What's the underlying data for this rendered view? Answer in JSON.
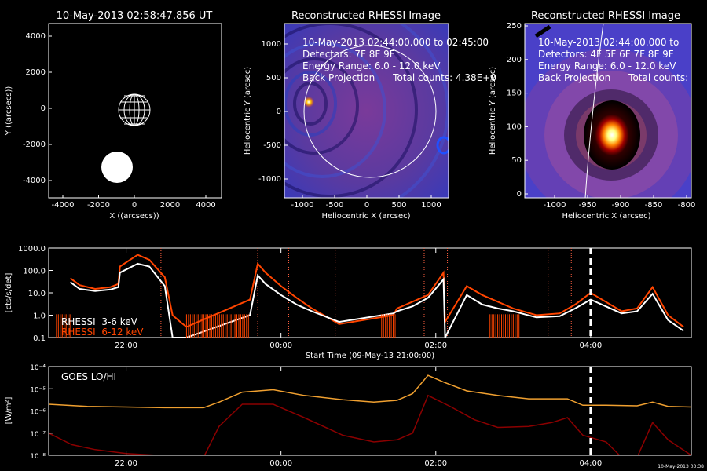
{
  "panels": {
    "overview": {
      "title": "10-May-2013 02:58:47.856 UT",
      "xlabel": "X ((arcsecs))",
      "ylabel": "Y ((arcsecs))",
      "xticks": [
        "-4000",
        "-2000",
        "0",
        "2000",
        "4000"
      ],
      "yticks": [
        "4000",
        "2000",
        "0",
        "-2000",
        "-4000"
      ]
    },
    "image1": {
      "title": "Reconstructed RHESSI Image",
      "lines": [
        "10-May-2013 02:44:00.000 to 02:45:00",
        "Detectors: 7F 8F 9F",
        "Energy Range: 6.0 - 12.0 keV",
        "Back Projection      Total counts: 4.38E+0"
      ],
      "xlabel": "Heliocentric X (arcsec)",
      "ylabel": "Heliocentric Y (arcsec)",
      "xticks": [
        "-1000",
        "-500",
        "0",
        "500",
        "1000"
      ],
      "yticks": [
        "1000",
        "500",
        "0",
        "-500",
        "-1000"
      ]
    },
    "image2": {
      "title": "Reconstructed RHESSI Image",
      "lines": [
        "10-May-2013 02:44:00.000 to",
        "Detectors: 4F 5F 6F 7F 8F 9F",
        "Energy Range: 6.0 - 12.0 keV",
        "Back Projection      Total counts:"
      ],
      "xlabel": "Heliocentric X (arcsec)",
      "ylabel": "Heliocentric Y (arcsec)",
      "xticks": [
        "-1000",
        "-950",
        "-900",
        "-850",
        "-800"
      ],
      "yticks": [
        "250",
        "200",
        "150",
        "100",
        "50",
        "0"
      ]
    },
    "rhessi": {
      "ylabel": "[cts/s/det]",
      "yticks": [
        "1000.0",
        "100.0",
        "10.0",
        "1.0",
        "0.1"
      ],
      "xticks": [
        "22:00",
        "00:00",
        "02:00",
        "04:00"
      ],
      "xlabel": "Start Time (09-May-13 21:00:00)",
      "legend": [
        "RHESSI  3-6 keV",
        "RHESSI  6-12 keV"
      ]
    },
    "goes": {
      "label": "GOES LO/HI",
      "ylabel": "[W/m²]",
      "yticks": [
        "10⁻⁴",
        "10⁻⁵",
        "10⁻⁶",
        "10⁻⁷",
        "10⁻⁸"
      ],
      "xticks": [
        "22:00",
        "00:00",
        "02:00",
        "04:00"
      ],
      "stamp": "10-May-2013 03:38"
    }
  },
  "colors": {
    "rhessi_low": "#ffffff",
    "rhessi_high": "#ff4500",
    "goes_lo": "#f0a030",
    "goes_hi": "#8b0000",
    "flare_marker": "#ff6040"
  },
  "chart_data": [
    {
      "type": "line",
      "title": "RHESSI count rates",
      "xlabel": "Start Time (09-May-13 21:00:00)",
      "ylabel": "[cts/s/det]",
      "yscale": "log",
      "ylim": [
        0.1,
        1000
      ],
      "xlim_hours_from_start": [
        0,
        8.3
      ],
      "series": [
        {
          "name": "RHESSI  3-6 keV",
          "x": [
            0.28,
            0.4,
            0.6,
            0.8,
            0.9,
            0.92,
            1.15,
            1.3,
            1.5,
            1.6,
            1.7,
            1.78,
            2.6,
            2.7,
            2.8,
            3.0,
            3.2,
            3.4,
            3.75,
            4.45,
            4.5,
            4.7,
            4.9,
            5.1,
            5.12,
            5.4,
            5.6,
            5.8,
            6.0,
            6.3,
            6.6,
            6.8,
            7.0,
            7.4,
            7.6,
            7.8,
            8.0,
            8.2
          ],
          "y": [
            30,
            15,
            12,
            14,
            18,
            80,
            200,
            150,
            20,
            0.1,
            0.1,
            0.1,
            1,
            60,
            25,
            8,
            3,
            1.5,
            0.5,
            1.2,
            1.5,
            2.5,
            6,
            40,
            0.1,
            8,
            3,
            2,
            1.5,
            0.8,
            0.9,
            2,
            5,
            1.2,
            1.5,
            9,
            0.6,
            0.2
          ]
        },
        {
          "name": "RHESSI  6-12 keV",
          "x": [
            0.28,
            0.4,
            0.6,
            0.8,
            0.9,
            0.92,
            1.15,
            1.3,
            1.5,
            1.6,
            1.7,
            1.78,
            2.6,
            2.7,
            2.8,
            3.0,
            3.2,
            3.4,
            3.75,
            4.45,
            4.5,
            4.7,
            4.9,
            5.1,
            5.12,
            5.4,
            5.6,
            5.8,
            6.0,
            6.3,
            6.6,
            6.8,
            7.0,
            7.4,
            7.6,
            7.8,
            8.0,
            8.2
          ],
          "y": [
            45,
            22,
            15,
            18,
            25,
            150,
            500,
            300,
            50,
            1.0,
            0.5,
            0.3,
            5,
            200,
            80,
            20,
            6,
            2,
            0.4,
            1,
            2,
            4,
            8,
            80,
            0.5,
            20,
            8,
            4,
            2,
            1,
            1.2,
            3,
            10,
            1.5,
            2,
            18,
            1,
            0.3
          ]
        }
      ],
      "flare_markers_hours": [
        1.45,
        2.7,
        3.1,
        3.7,
        4.5,
        4.85,
        5.15,
        6.45,
        6.75
      ],
      "current_time_hours": 7.0
    },
    {
      "type": "line",
      "title": "GOES LO/HI",
      "ylabel": "[W/m²]",
      "yscale": "log",
      "ylim": [
        1e-08,
        0.0001
      ],
      "series": [
        {
          "name": "LO",
          "x": [
            0,
            0.5,
            1.0,
            1.5,
            2.0,
            2.2,
            2.5,
            2.9,
            3.3,
            3.8,
            4.2,
            4.5,
            4.7,
            4.9,
            5.1,
            5.4,
            5.8,
            6.2,
            6.5,
            6.7,
            6.9,
            7.2,
            7.6,
            7.8,
            8.0,
            8.3
          ],
          "y": [
            2e-06,
            1.6e-06,
            1.5e-06,
            1.4e-06,
            1.4e-06,
            2.5e-06,
            7e-06,
            9e-06,
            5e-06,
            3.2e-06,
            2.5e-06,
            3e-06,
            6e-06,
            4e-05,
            2e-05,
            8e-06,
            5e-06,
            3.5e-06,
            3.5e-06,
            3.5e-06,
            1.8e-06,
            1.8e-06,
            1.7e-06,
            2.5e-06,
            1.6e-06,
            1.5e-06
          ]
        },
        {
          "name": "HI",
          "x": [
            0,
            0.3,
            0.6,
            1.0,
            1.4,
            1.6,
            2.0,
            2.2,
            2.5,
            2.9,
            3.3,
            3.8,
            4.2,
            4.5,
            4.7,
            4.9,
            5.2,
            5.5,
            5.8,
            6.2,
            6.5,
            6.7,
            6.9,
            7.2,
            7.4,
            7.6,
            7.8,
            8.0,
            8.3
          ],
          "y": [
            1e-07,
            3e-08,
            1.8e-08,
            1.2e-08,
            1e-08,
            8e-09,
            8e-09,
            2e-07,
            2e-06,
            2e-06,
            5e-07,
            8e-08,
            4e-08,
            5e-08,
            1e-07,
            5e-06,
            1.5e-06,
            4e-07,
            1.8e-07,
            2e-07,
            3e-07,
            5e-07,
            8e-08,
            4e-08,
            8e-09,
            8e-09,
            3e-07,
            5e-08,
            1e-08
          ]
        }
      ],
      "current_time_hours": 7.0
    }
  ]
}
